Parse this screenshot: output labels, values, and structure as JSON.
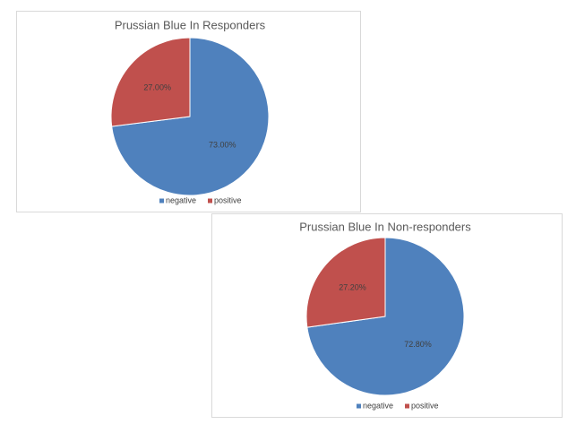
{
  "chart_data": [
    {
      "type": "pie",
      "title": "Prussian Blue In Responders",
      "categories": [
        "negative",
        "positive"
      ],
      "values": [
        73,
        27
      ],
      "value_labels": [
        "73.00%",
        "27.00%"
      ],
      "colors": [
        "#4f81bd",
        "#c0504d"
      ]
    },
    {
      "type": "pie",
      "title": "Prussian Blue In Non-responders",
      "categories": [
        "negative",
        "positive"
      ],
      "values": [
        72.8,
        27.2
      ],
      "value_labels": [
        "72.80%",
        "27.20%"
      ],
      "colors": [
        "#4f81bd",
        "#c0504d"
      ]
    }
  ]
}
